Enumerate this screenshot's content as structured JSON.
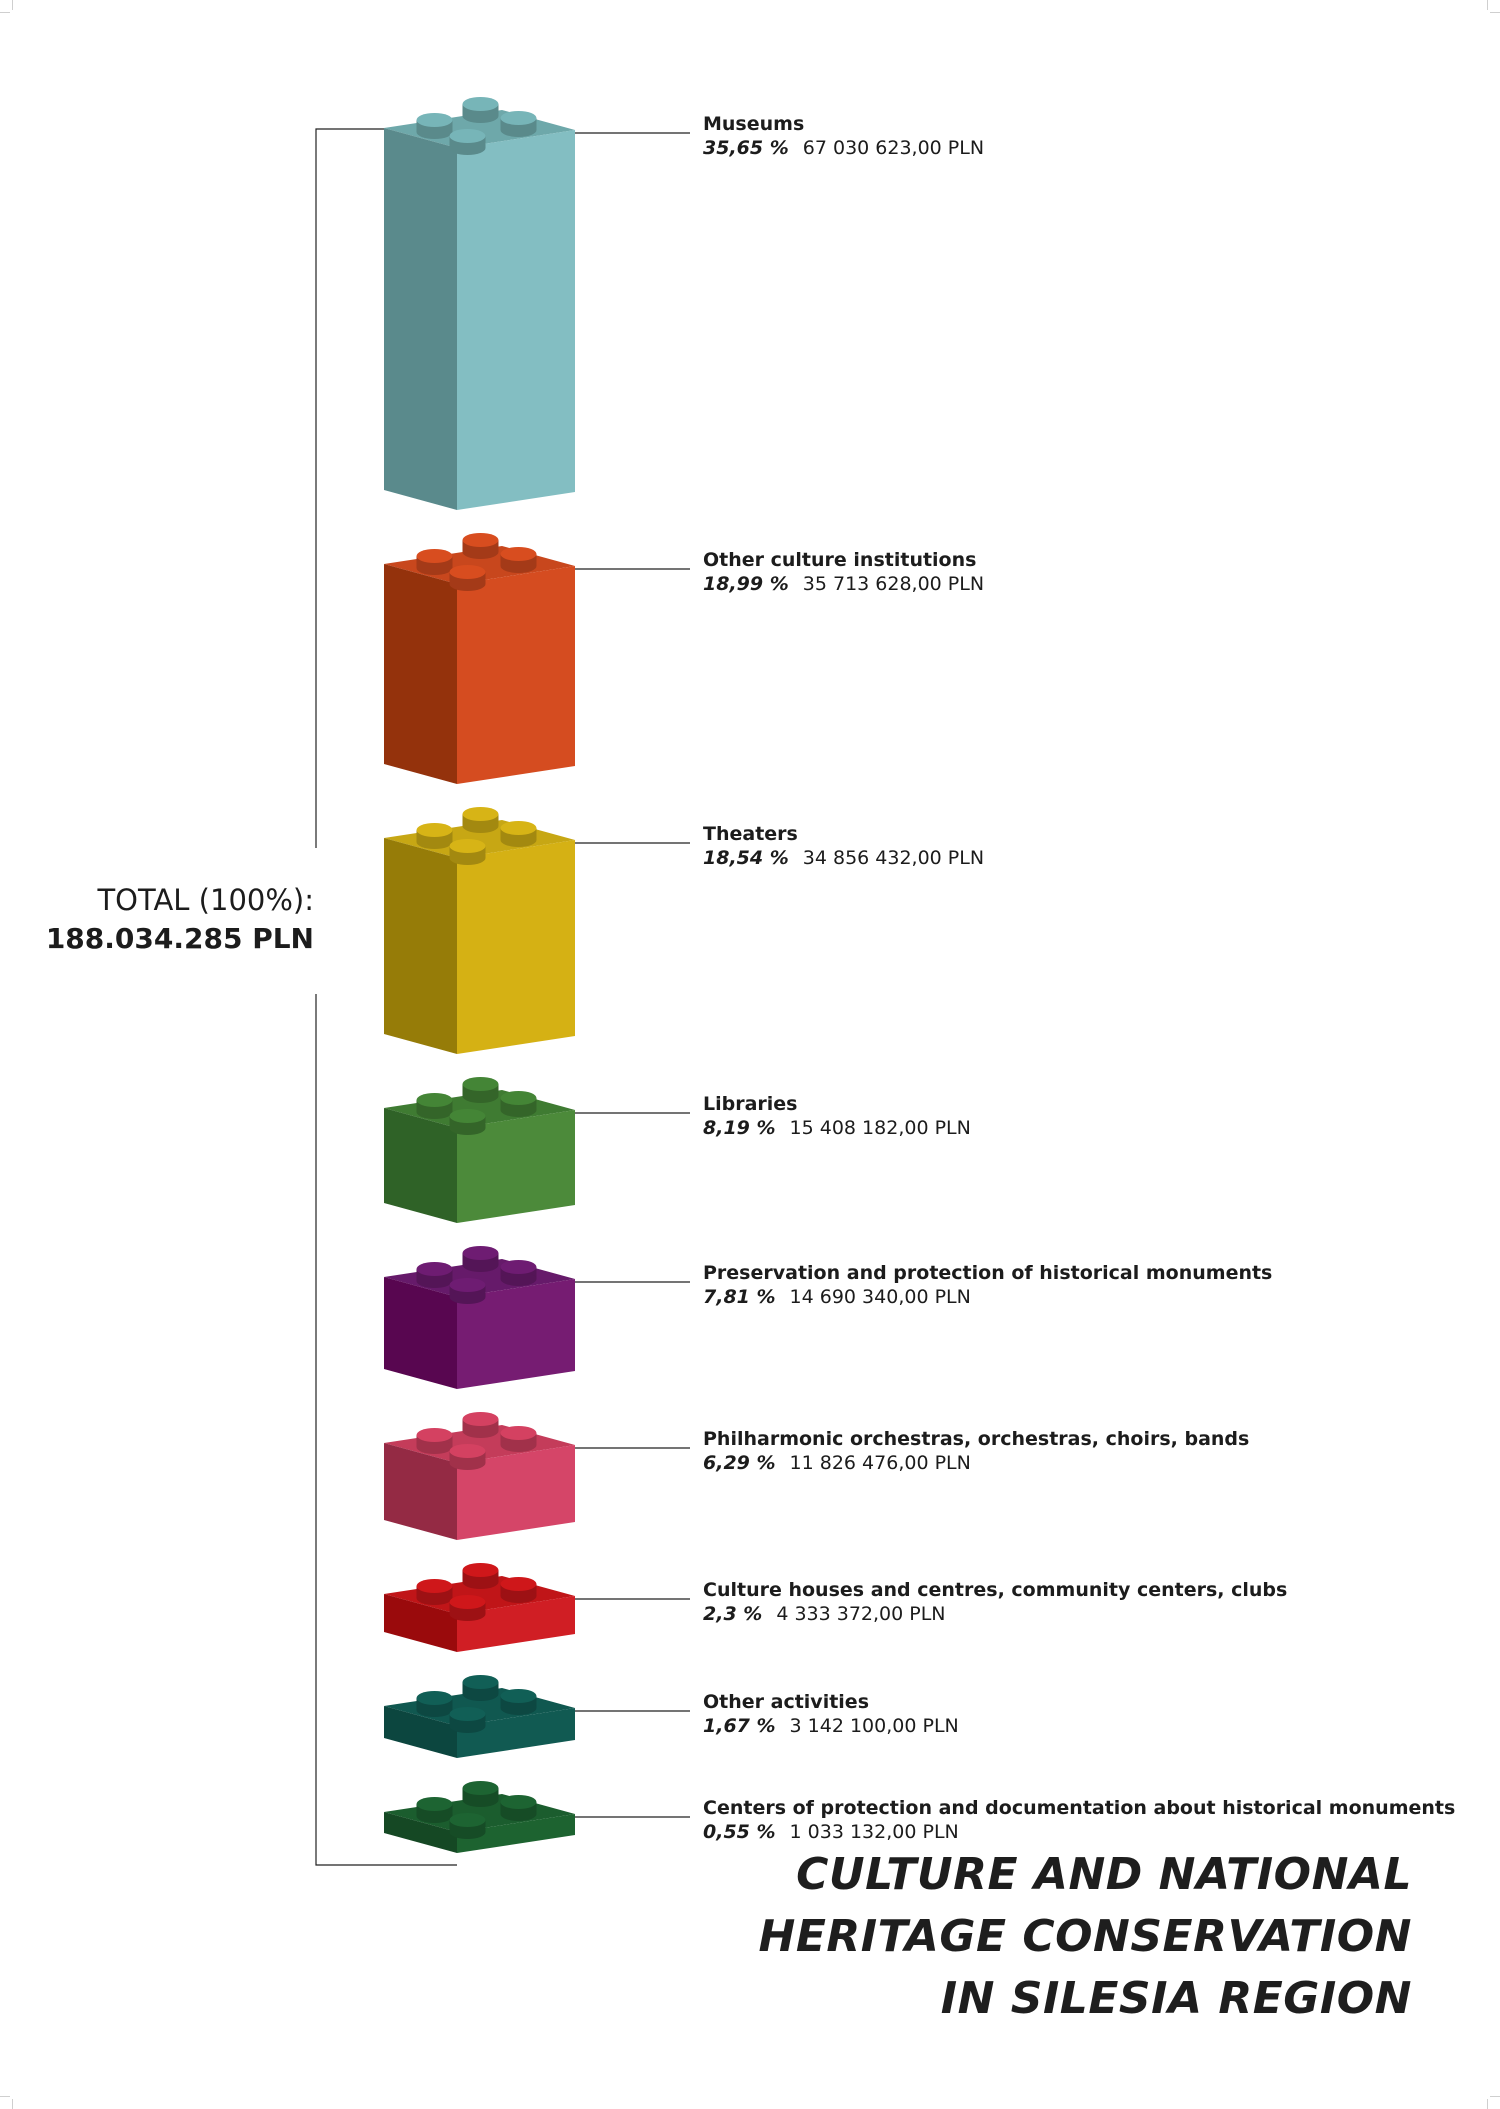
{
  "total": {
    "label": "TOTAL (100%):",
    "value": "188.034.285 PLN"
  },
  "title_lines": [
    "CULTURE AND NATIONAL",
    "HERITAGE CONSERVATION",
    "IN SILESIA REGION"
  ],
  "chart_data": {
    "type": "bar",
    "title": "CULTURE AND NATIONAL HERITAGE CONSERVATION IN SILESIA REGION",
    "categories": [
      "Museums",
      "Other culture institutions",
      "Theaters",
      "Libraries",
      "Preservation and protection of historical monuments",
      "Philharmonic orchestras, orchestras, choirs, bands",
      "Culture houses and centres, community centers, clubs",
      "Other activities",
      "Centers of protection and documentation about historical monuments"
    ],
    "percent_labels": [
      "35,65 %",
      "18,99 %",
      "18,54 %",
      "8,19 %",
      "7,81 %",
      "6,29 %",
      "2,3 %",
      "1,67 %",
      "0,55 %"
    ],
    "amount_labels": [
      "67 030 623,00 PLN",
      "35 713 628,00 PLN",
      "34 856 432,00 PLN",
      "15 408 182,00 PLN",
      "14 690 340,00 PLN",
      "11 826 476,00 PLN",
      "4 333 372,00 PLN",
      "3 142 100,00 PLN",
      "1 033 132,00 PLN"
    ],
    "values": [
      67030623.0,
      35713628.0,
      34856432.0,
      15408182.0,
      14690340.0,
      11826476.0,
      4333372.0,
      3142100.0,
      1033132.0
    ],
    "percent": [
      35.65,
      18.99,
      18.54,
      8.19,
      7.81,
      6.29,
      2.3,
      1.67,
      0.55
    ],
    "colors": [
      {
        "top": "#6ea8aa",
        "front": "#83bec2",
        "side": "#5a8a8c"
      },
      {
        "top": "#c8471d",
        "front": "#d54c20",
        "side": "#94320c"
      },
      {
        "top": "#c7a714",
        "front": "#d5b114",
        "side": "#967c08"
      },
      {
        "top": "#3f7b32",
        "front": "#4c8a3a",
        "side": "#2f6227"
      },
      {
        "top": "#661a6a",
        "front": "#761c72",
        "side": "#580650"
      },
      {
        "top": "#c43c5a",
        "front": "#d54568",
        "side": "#942a44"
      },
      {
        "top": "#c01518",
        "front": "#d01e24",
        "side": "#9a0a0c"
      },
      {
        "top": "#105850",
        "front": "#115a52",
        "side": "#0c463f"
      },
      {
        "top": "#1b5d2e",
        "front": "#1d6330",
        "side": "#154824"
      }
    ]
  }
}
